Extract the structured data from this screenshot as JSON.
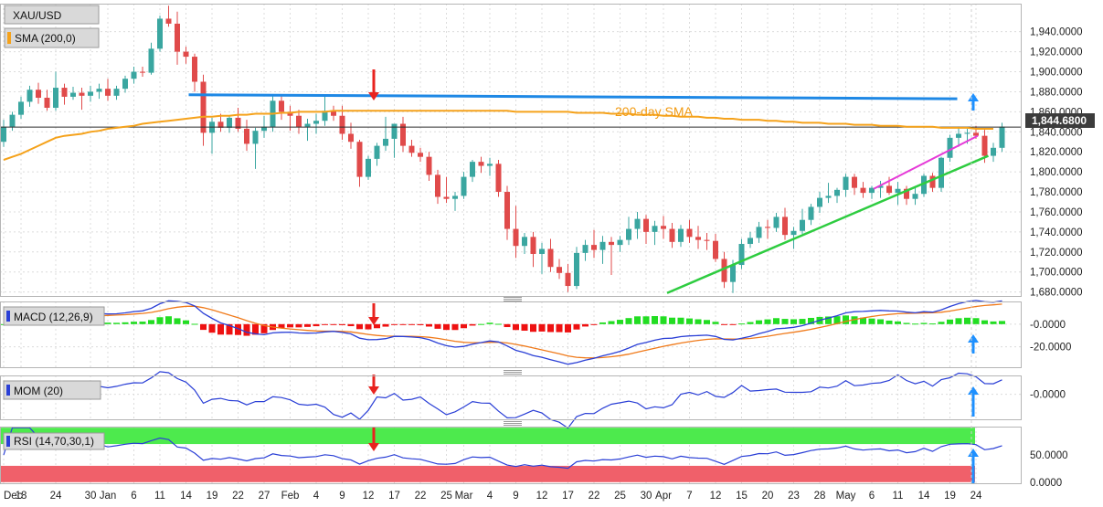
{
  "chart_data": {
    "type": "candlestick",
    "symbol": "XAU/USD",
    "colors": {
      "up": "#3aa6a0",
      "down": "#e04a4a",
      "sma": "#f5a21b",
      "resistance": "#1e88e5",
      "support_line": "#2ecc40",
      "short_support": "#e63ad8",
      "arrow_up": "#1e90ff",
      "arrow_down": "#e8231f",
      "hist_pos": "#22dd22",
      "hist_neg": "#ee1111",
      "macd": "#2a3fd6",
      "signal": "#f07a1a",
      "mom": "#2a3fd6",
      "rsi": "#2a3fd6",
      "rsi_over": "#4dea4d",
      "rsi_under": "#f0606a"
    },
    "main_panel": {
      "ylim": [
        1676,
        1968
      ],
      "yticks": [
        1680,
        1700,
        1720,
        1740,
        1760,
        1780,
        1800,
        1820,
        1840,
        1860,
        1880,
        1900,
        1920,
        1940
      ],
      "ytick_labels": [
        "1,680.0000",
        "1,700.0000",
        "1,720.0000",
        "1,740.0000",
        "1,760.0000",
        "1,780.0000",
        "1,800.0000",
        "1,820.0000",
        "1,840.0000",
        "1,860.0000",
        "1,880.0000",
        "1,900.0000",
        "1,920.0000",
        "1,940.0000"
      ],
      "last_price": 1844.68,
      "last_price_label": "1,844.6800",
      "legend": [
        "XAU/USD",
        "SMA (200,0)"
      ],
      "sma_annotation": "200-day SMA",
      "candles": [
        [
          1830,
          1852,
          1825,
          1845
        ],
        [
          1845,
          1860,
          1841,
          1857
        ],
        [
          1857,
          1875,
          1853,
          1870
        ],
        [
          1870,
          1886,
          1865,
          1882
        ],
        [
          1882,
          1889,
          1868,
          1874
        ],
        [
          1874,
          1882,
          1861,
          1864
        ],
        [
          1864,
          1900,
          1861,
          1884
        ],
        [
          1884,
          1888,
          1867,
          1875
        ],
        [
          1875,
          1885,
          1872,
          1879
        ],
        [
          1879,
          1884,
          1862,
          1876
        ],
        [
          1876,
          1886,
          1870,
          1880
        ],
        [
          1880,
          1888,
          1873,
          1883
        ],
        [
          1883,
          1893,
          1871,
          1876
        ],
        [
          1876,
          1886,
          1872,
          1883
        ],
        [
          1883,
          1896,
          1879,
          1893
        ],
        [
          1893,
          1905,
          1888,
          1900
        ],
        [
          1900,
          1905,
          1895,
          1899
        ],
        [
          1899,
          1929,
          1897,
          1923
        ],
        [
          1923,
          1956,
          1920,
          1953
        ],
        [
          1953,
          1966,
          1945,
          1948
        ],
        [
          1948,
          1960,
          1907,
          1920
        ],
        [
          1920,
          1925,
          1908,
          1915
        ],
        [
          1915,
          1918,
          1880,
          1890
        ],
        [
          1890,
          1897,
          1826,
          1839
        ],
        [
          1839,
          1854,
          1818,
          1850
        ],
        [
          1850,
          1858,
          1840,
          1844
        ],
        [
          1844,
          1856,
          1839,
          1854
        ],
        [
          1854,
          1864,
          1840,
          1843
        ],
        [
          1843,
          1852,
          1821,
          1828
        ],
        [
          1828,
          1844,
          1803,
          1841
        ],
        [
          1841,
          1856,
          1834,
          1845
        ],
        [
          1845,
          1876,
          1840,
          1871
        ],
        [
          1871,
          1876,
          1852,
          1860
        ],
        [
          1860,
          1866,
          1841,
          1856
        ],
        [
          1856,
          1862,
          1838,
          1845
        ],
        [
          1845,
          1853,
          1831,
          1848
        ],
        [
          1848,
          1858,
          1838,
          1851
        ],
        [
          1851,
          1876,
          1846,
          1861
        ],
        [
          1861,
          1866,
          1851,
          1856
        ],
        [
          1856,
          1866,
          1832,
          1838
        ],
        [
          1838,
          1849,
          1823,
          1830
        ],
        [
          1830,
          1832,
          1785,
          1795
        ],
        [
          1795,
          1816,
          1792,
          1813
        ],
        [
          1813,
          1829,
          1806,
          1826
        ],
        [
          1826,
          1855,
          1821,
          1833
        ],
        [
          1833,
          1847,
          1814,
          1848
        ],
        [
          1848,
          1855,
          1820,
          1826
        ],
        [
          1826,
          1832,
          1815,
          1819
        ],
        [
          1819,
          1824,
          1810,
          1815
        ],
        [
          1815,
          1820,
          1791,
          1797
        ],
        [
          1797,
          1802,
          1768,
          1775
        ],
        [
          1775,
          1795,
          1769,
          1773
        ],
        [
          1773,
          1780,
          1761,
          1776
        ],
        [
          1776,
          1800,
          1773,
          1795
        ],
        [
          1795,
          1812,
          1790,
          1810
        ],
        [
          1810,
          1815,
          1799,
          1806
        ],
        [
          1806,
          1814,
          1796,
          1808
        ],
        [
          1808,
          1812,
          1775,
          1780
        ],
        [
          1780,
          1786,
          1732,
          1743
        ],
        [
          1743,
          1766,
          1714,
          1726
        ],
        [
          1726,
          1739,
          1718,
          1735
        ],
        [
          1735,
          1740,
          1705,
          1718
        ],
        [
          1718,
          1729,
          1698,
          1723
        ],
        [
          1723,
          1733,
          1700,
          1705
        ],
        [
          1705,
          1713,
          1693,
          1699
        ],
        [
          1699,
          1708,
          1680,
          1686
        ],
        [
          1686,
          1725,
          1683,
          1719
        ],
        [
          1719,
          1732,
          1711,
          1727
        ],
        [
          1727,
          1742,
          1714,
          1722
        ],
        [
          1722,
          1736,
          1708,
          1730
        ],
        [
          1730,
          1735,
          1697,
          1727
        ],
        [
          1727,
          1736,
          1720,
          1732
        ],
        [
          1732,
          1755,
          1727,
          1743
        ],
        [
          1743,
          1760,
          1733,
          1753
        ],
        [
          1753,
          1757,
          1728,
          1740
        ],
        [
          1740,
          1751,
          1727,
          1746
        ],
        [
          1746,
          1756,
          1733,
          1743
        ],
        [
          1743,
          1749,
          1724,
          1730
        ],
        [
          1730,
          1747,
          1725,
          1743
        ],
        [
          1743,
          1752,
          1729,
          1735
        ],
        [
          1735,
          1746,
          1723,
          1732
        ],
        [
          1732,
          1739,
          1722,
          1731
        ],
        [
          1731,
          1738,
          1710,
          1713
        ],
        [
          1713,
          1720,
          1684,
          1690
        ],
        [
          1690,
          1712,
          1679,
          1707
        ],
        [
          1707,
          1733,
          1703,
          1728
        ],
        [
          1728,
          1740,
          1724,
          1734
        ],
        [
          1734,
          1750,
          1729,
          1745
        ],
        [
          1745,
          1752,
          1733,
          1744
        ],
        [
          1744,
          1759,
          1740,
          1755
        ],
        [
          1755,
          1764,
          1732,
          1737
        ],
        [
          1737,
          1745,
          1723,
          1741
        ],
        [
          1741,
          1763,
          1738,
          1752
        ],
        [
          1752,
          1768,
          1747,
          1765
        ],
        [
          1765,
          1780,
          1759,
          1774
        ],
        [
          1774,
          1789,
          1769,
          1776
        ],
        [
          1776,
          1784,
          1769,
          1782
        ],
        [
          1782,
          1798,
          1775,
          1795
        ],
        [
          1795,
          1798,
          1777,
          1784
        ],
        [
          1784,
          1790,
          1774,
          1779
        ],
        [
          1779,
          1786,
          1773,
          1784
        ],
        [
          1784,
          1791,
          1774,
          1786
        ],
        [
          1786,
          1795,
          1777,
          1779
        ],
        [
          1779,
          1790,
          1767,
          1783
        ],
        [
          1783,
          1786,
          1767,
          1773
        ],
        [
          1773,
          1784,
          1767,
          1778
        ],
        [
          1778,
          1798,
          1775,
          1796
        ],
        [
          1796,
          1799,
          1780,
          1784
        ],
        [
          1784,
          1815,
          1780,
          1814
        ],
        [
          1814,
          1837,
          1810,
          1834
        ],
        [
          1834,
          1845,
          1825,
          1838
        ],
        [
          1838,
          1843,
          1828,
          1839
        ],
        [
          1839,
          1846,
          1833,
          1836
        ],
        [
          1836,
          1842,
          1809,
          1816
        ],
        [
          1816,
          1829,
          1810,
          1824
        ],
        [
          1824,
          1849,
          1820,
          1845
        ]
      ],
      "sma_200": [
        1812,
        1815,
        1818,
        1822,
        1826,
        1830,
        1834,
        1836,
        1837,
        1838,
        1840,
        1841,
        1843,
        1844,
        1845,
        1846,
        1848,
        1849,
        1850,
        1851,
        1852,
        1853,
        1854,
        1855,
        1855,
        1856,
        1856,
        1857,
        1857,
        1858,
        1858,
        1858,
        1859,
        1859,
        1860,
        1860,
        1860,
        1860,
        1861,
        1861,
        1861,
        1861,
        1861,
        1861,
        1861,
        1861,
        1861,
        1861,
        1861,
        1861,
        1861,
        1861,
        1861,
        1861,
        1861,
        1861,
        1861,
        1861,
        1861,
        1860,
        1860,
        1860,
        1860,
        1860,
        1860,
        1860,
        1859,
        1859,
        1859,
        1859,
        1858,
        1858,
        1858,
        1857,
        1857,
        1857,
        1856,
        1856,
        1855,
        1855,
        1855,
        1854,
        1854,
        1853,
        1853,
        1852,
        1852,
        1852,
        1851,
        1851,
        1850,
        1850,
        1849,
        1849,
        1849,
        1848,
        1848,
        1848,
        1847,
        1847,
        1847,
        1846,
        1846,
        1846,
        1845,
        1845,
        1845,
        1845,
        1844,
        1844,
        1844,
        1844,
        1843,
        1843,
        1843
      ]
    },
    "x_axis": {
      "ticks": [
        {
          "label": "Dec",
          "i": 0
        },
        {
          "label": "18",
          "i": 2
        },
        {
          "label": "24",
          "i": 6
        },
        {
          "label": "30",
          "i": 10
        },
        {
          "label": "Jan",
          "i": 12
        },
        {
          "label": "6",
          "i": 15
        },
        {
          "label": "11",
          "i": 18
        },
        {
          "label": "14",
          "i": 21
        },
        {
          "label": "19",
          "i": 24
        },
        {
          "label": "22",
          "i": 27
        },
        {
          "label": "27",
          "i": 30
        },
        {
          "label": "Feb",
          "i": 33
        },
        {
          "label": "4",
          "i": 36
        },
        {
          "label": "9",
          "i": 39
        },
        {
          "label": "12",
          "i": 42
        },
        {
          "label": "17",
          "i": 45
        },
        {
          "label": "22",
          "i": 48
        },
        {
          "label": "25",
          "i": 51
        },
        {
          "label": "Mar",
          "i": 53
        },
        {
          "label": "4",
          "i": 56
        },
        {
          "label": "9",
          "i": 59
        },
        {
          "label": "12",
          "i": 62
        },
        {
          "label": "17",
          "i": 65
        },
        {
          "label": "22",
          "i": 68
        },
        {
          "label": "25",
          "i": 71
        },
        {
          "label": "30",
          "i": 74
        },
        {
          "label": "Apr",
          "i": 76
        },
        {
          "label": "7",
          "i": 79
        },
        {
          "label": "12",
          "i": 82
        },
        {
          "label": "15",
          "i": 85
        },
        {
          "label": "20",
          "i": 88
        },
        {
          "label": "23",
          "i": 91
        },
        {
          "label": "28",
          "i": 94
        },
        {
          "label": "May",
          "i": 97
        },
        {
          "label": "6",
          "i": 100
        },
        {
          "label": "11",
          "i": 103
        },
        {
          "label": "14",
          "i": 106
        },
        {
          "label": "19",
          "i": 109
        },
        {
          "label": "24",
          "i": 112
        }
      ]
    },
    "annotations": {
      "resistance": {
        "from_i": 21,
        "to_i": 109,
        "y_start": 1877,
        "y_end": 1873
      },
      "support_line": {
        "from_i": 76,
        "to_i": 113,
        "y_start": 1679,
        "y_end": 1816
      },
      "short_support": {
        "from_i": 100,
        "to_i": 112,
        "y_start": 1783,
        "y_end": 1836
      },
      "down_arrow": {
        "i": 40,
        "y_top": 1895,
        "y_bottom": 1864
      },
      "up_arrow": {
        "i": 109,
        "y_top": 1876,
        "y_bottom": 1862
      }
    },
    "macd_panel": {
      "legend": "MACD (12,26,9)",
      "ylim": [
        -38,
        20
      ],
      "yticks": [
        0,
        -20
      ],
      "ytick_labels": [
        "-0.0000",
        "-20.0000"
      ]
    },
    "mom_panel": {
      "legend": "MOM (20)",
      "ylim": [
        -120,
        90
      ],
      "yticks": [
        0
      ],
      "ytick_labels": [
        "-0.0000"
      ]
    },
    "rsi_panel": {
      "legend": "RSI (14,70,30,1)",
      "ylim": [
        -2,
        102
      ],
      "yticks": [
        50,
        0
      ],
      "ytick_labels": [
        "50.0000",
        "0.0000"
      ],
      "overbought": 70,
      "oversold": 30
    }
  }
}
